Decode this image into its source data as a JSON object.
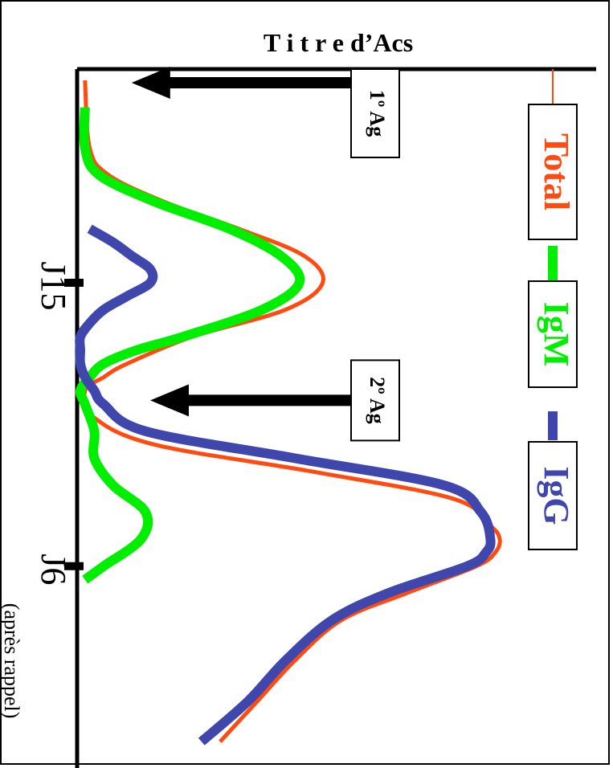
{
  "chart_data": {
    "type": "line",
    "title": "T i t r e d’Acs",
    "orientation": "rotated-90-clockwise",
    "xlabel": "",
    "ylabel": "",
    "x_ticks": [
      {
        "value": 15,
        "label": "J15",
        "sublabel": ""
      },
      {
        "value": 36,
        "label": "J6",
        "sublabel": "(après rappel)"
      }
    ],
    "xlim": [
      0,
      50
    ],
    "ylim": [
      0,
      100
    ],
    "grid": false,
    "legend_position": "right",
    "series": [
      {
        "name": "Total",
        "color": "#ff4a10",
        "x": [
          0,
          5,
          7,
          9,
          11,
          13,
          15,
          17,
          19,
          21,
          22,
          23,
          25,
          27,
          29,
          31,
          33,
          34,
          35,
          36,
          38,
          40,
          43,
          46,
          49
        ],
        "y": [
          1,
          2,
          6,
          18,
          34,
          48,
          52,
          44,
          24,
          10,
          5,
          1,
          3,
          16,
          50,
          80,
          88,
          90,
          89,
          85,
          70,
          56,
          46,
          38,
          30
        ]
      },
      {
        "name": "IgM",
        "color": "#00ee00",
        "x": [
          2,
          5,
          7,
          9,
          11,
          13,
          15,
          17,
          19,
          20,
          21,
          22,
          23,
          24,
          26,
          28,
          30,
          32,
          34,
          36,
          37
        ],
        "y": [
          1,
          1,
          4,
          16,
          32,
          43,
          47,
          39,
          22,
          12,
          5,
          2,
          0,
          1,
          3,
          3,
          7,
          14,
          13,
          5,
          1
        ]
      },
      {
        "name": "IgG",
        "color": "#3f47ad",
        "x": [
          11,
          12,
          13,
          14,
          15,
          16,
          17,
          18,
          19,
          20,
          21,
          22,
          23,
          24,
          26,
          28,
          30,
          32,
          34,
          35,
          36,
          38,
          40,
          43,
          46,
          49
        ],
        "y": [
          2,
          7,
          11,
          15,
          15,
          10,
          5,
          2,
          0,
          0,
          0,
          1,
          3,
          5,
          14,
          46,
          78,
          86,
          88,
          87,
          83,
          66,
          54,
          44,
          36,
          26
        ]
      }
    ],
    "annotations": [
      {
        "label": "1º Ag",
        "x": 0
      },
      {
        "label": "2º Ag",
        "x": 23
      }
    ]
  }
}
